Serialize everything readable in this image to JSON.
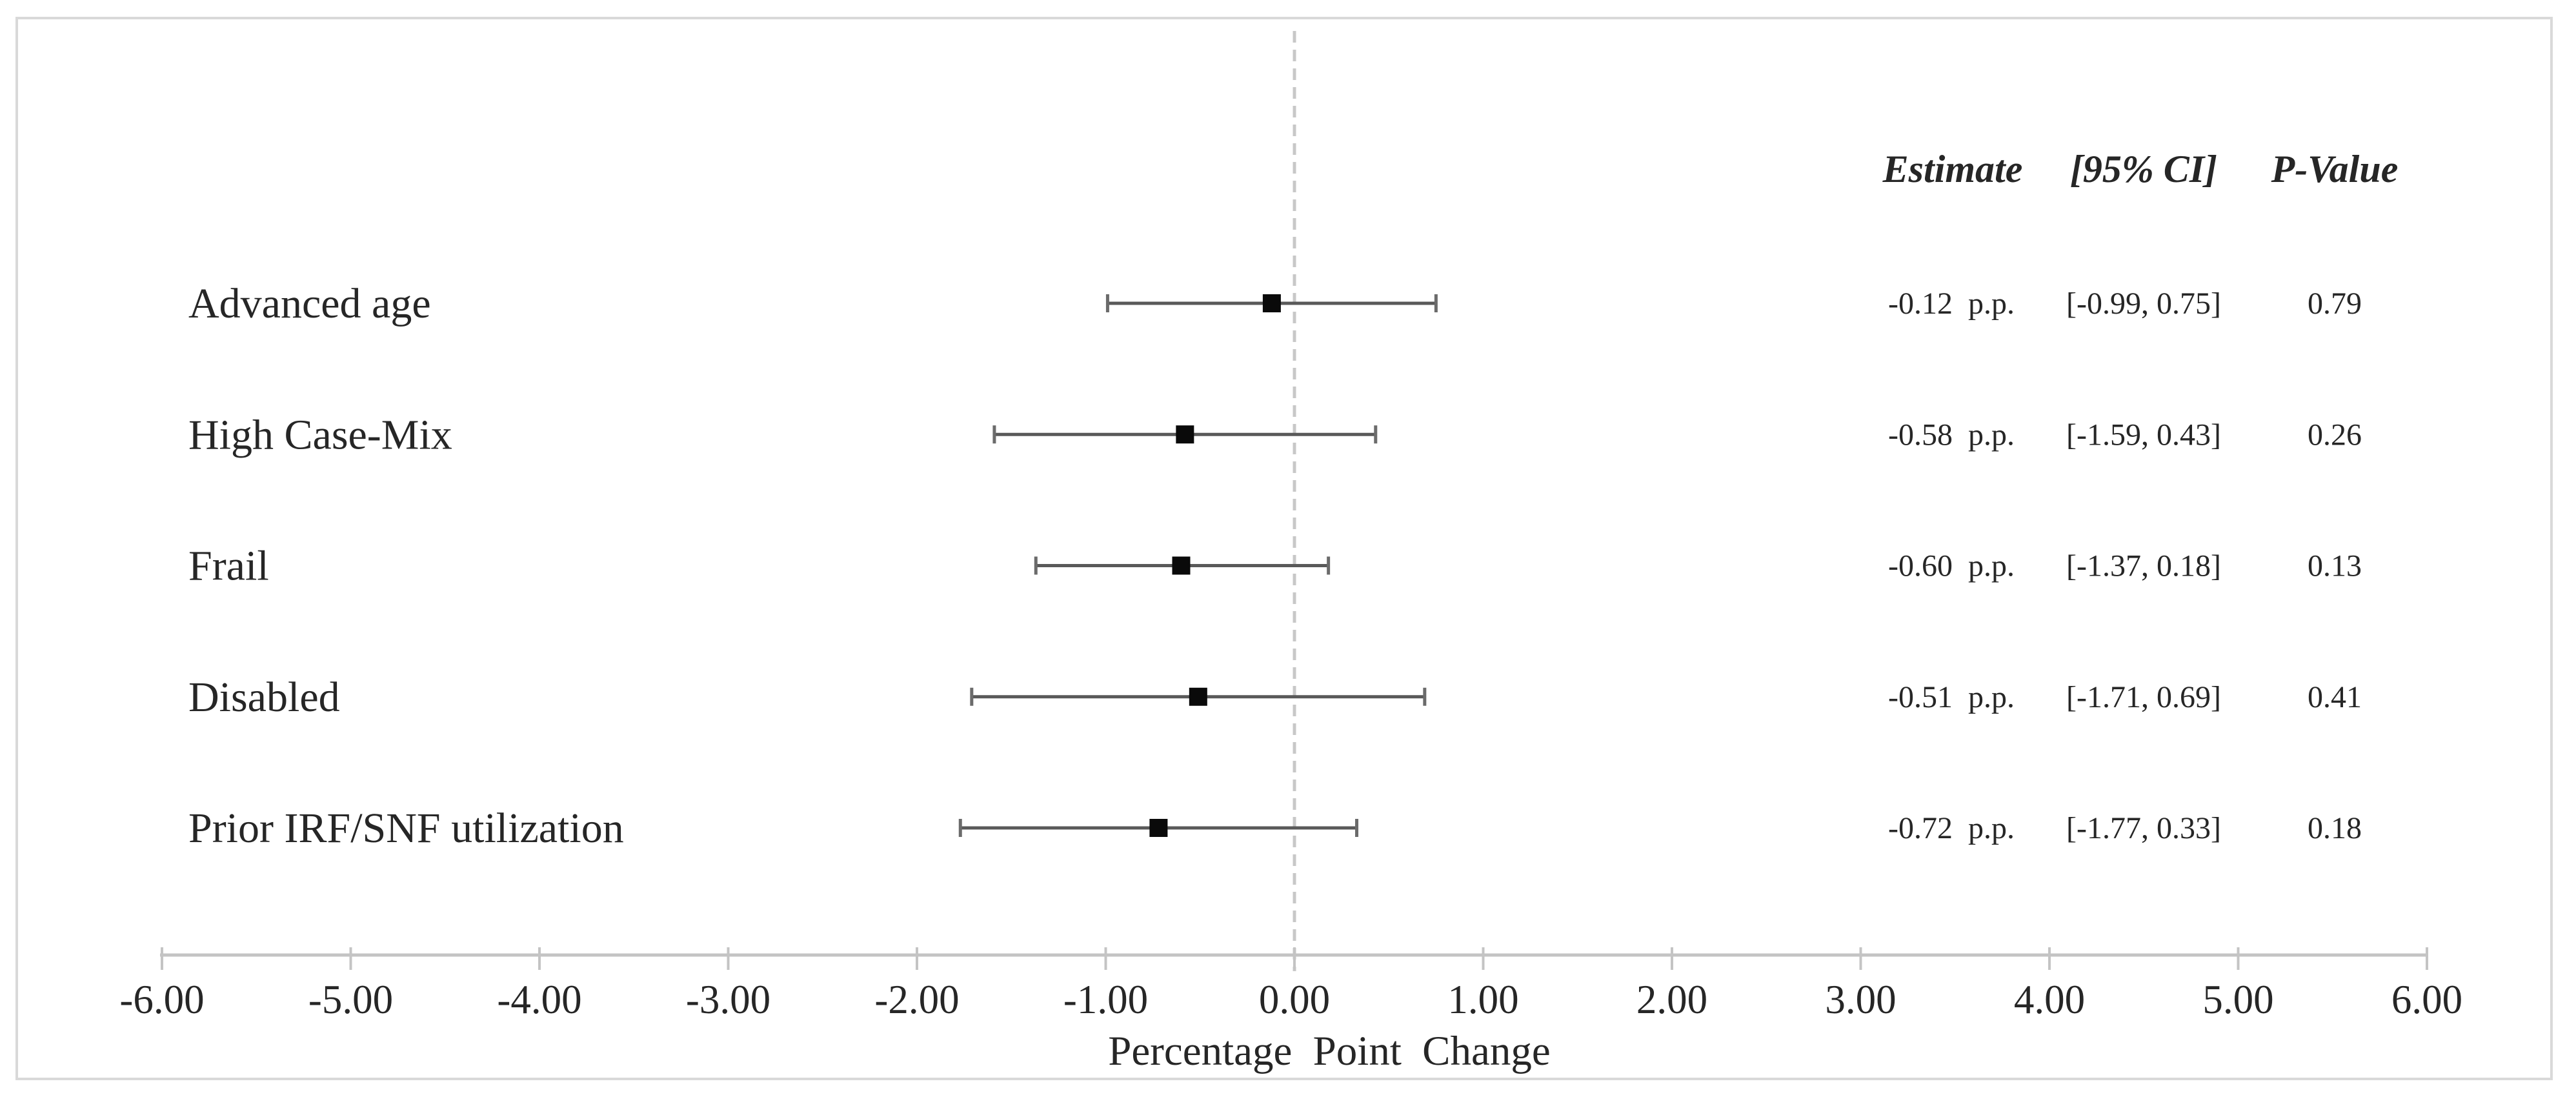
{
  "chart_data": {
    "type": "scatter",
    "subtype": "forest-plot",
    "title": "",
    "xlabel": "Percentage Point Change",
    "ylabel": "",
    "xlim": [
      -6,
      6
    ],
    "grid": false,
    "legend": "none",
    "zero_reference_line": {
      "x": 0,
      "style": "dashed"
    },
    "x_tick_values": [
      -6,
      -5,
      -4,
      -3,
      -2,
      -1,
      0,
      1,
      2,
      3,
      4,
      5,
      6
    ],
    "x_tick_labels": [
      "-6.00",
      "-5.00",
      "-4.00",
      "-3.00",
      "-2.00",
      "-1.00",
      "0.00",
      "1.00",
      "2.00",
      "3.00",
      "4.00",
      "5.00",
      "6.00"
    ],
    "categories": [
      "Advanced age",
      "High Case-Mix",
      "Frail",
      "Disabled",
      "Prior IRF/SNF utilization"
    ],
    "rows": [
      {
        "label": "Advanced age",
        "estimate": -0.12,
        "ci": [
          -0.99,
          0.75
        ],
        "p": 0.79,
        "estimate_label": "-0.12 p.p.",
        "ci_label": "[-0.99, 0.75]",
        "p_label": "0.79"
      },
      {
        "label": "High Case-Mix",
        "estimate": -0.58,
        "ci": [
          -1.59,
          0.43
        ],
        "p": 0.26,
        "estimate_label": "-0.58 p.p.",
        "ci_label": "[-1.59, 0.43]",
        "p_label": "0.26"
      },
      {
        "label": "Frail",
        "estimate": -0.6,
        "ci": [
          -1.37,
          0.18
        ],
        "p": 0.13,
        "estimate_label": "-0.60 p.p.",
        "ci_label": "[-1.37, 0.18]",
        "p_label": "0.13"
      },
      {
        "label": "Disabled",
        "estimate": -0.51,
        "ci": [
          -1.71,
          0.69
        ],
        "p": 0.41,
        "estimate_label": "-0.51 p.p.",
        "ci_label": "[-1.71, 0.69]",
        "p_label": "0.41"
      },
      {
        "label": "Prior IRF/SNF utilization",
        "estimate": -0.72,
        "ci": [
          -1.77,
          0.33
        ],
        "p": 0.18,
        "estimate_label": "-0.72 p.p.",
        "ci_label": "[-1.77, 0.33]",
        "p_label": "0.18"
      }
    ],
    "table": {
      "headers": [
        "Estimate",
        "[95% CI]",
        "P-Value"
      ]
    },
    "colors": {
      "marker": "#0a0a0a",
      "error_bar": "#595959",
      "error_bar_cap": "#6b6b6b",
      "axis": "#c4c4c4",
      "zero_line": "#c8c8c8",
      "frame": "#d9d9d9",
      "text": "#262626"
    }
  }
}
